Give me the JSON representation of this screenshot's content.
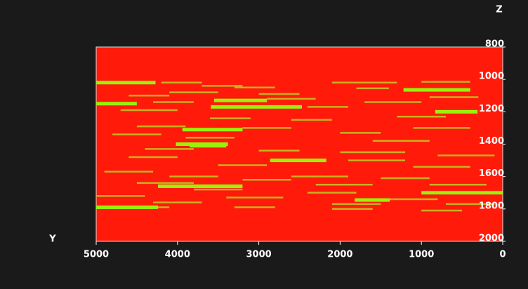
{
  "chart_data": {
    "type": "segments",
    "xlabel": "Y",
    "ylabel": "Z",
    "xlim": [
      5000,
      0
    ],
    "xticks": [
      5000,
      4000,
      3000,
      2000,
      1000,
      0
    ],
    "ylim": [
      800,
      2000
    ],
    "yticks": [
      800,
      1000,
      1200,
      1400,
      1600,
      1800,
      2000
    ],
    "background": "#ff1a0a",
    "series": [
      {
        "color": "#c8b020",
        "segments": [
          {
            "y": [
              4200,
              3700
            ],
            "z": 1020
          },
          {
            "y": [
              3700,
              3200
            ],
            "z": 1040
          },
          {
            "y": [
              3300,
              2800
            ],
            "z": 1050
          },
          {
            "y": [
              2100,
              1300
            ],
            "z": 1020
          },
          {
            "y": [
              1000,
              400
            ],
            "z": 1015
          },
          {
            "y": [
              1800,
              1400
            ],
            "z": 1055
          },
          {
            "y": [
              4100,
              3500
            ],
            "z": 1080
          },
          {
            "y": [
              3000,
              2500
            ],
            "z": 1090
          },
          {
            "y": [
              4600,
              4100
            ],
            "z": 1100
          },
          {
            "y": [
              2900,
              2300
            ],
            "z": 1120
          },
          {
            "y": [
              900,
              300
            ],
            "z": 1110
          },
          {
            "y": [
              4300,
              3800
            ],
            "z": 1140
          },
          {
            "y": [
              1700,
              1000
            ],
            "z": 1140
          },
          {
            "y": [
              2400,
              1900
            ],
            "z": 1170
          },
          {
            "y": [
              4700,
              4000
            ],
            "z": 1190
          },
          {
            "y": [
              1300,
              700
            ],
            "z": 1230
          },
          {
            "y": [
              3600,
              3100
            ],
            "z": 1240
          },
          {
            "y": [
              2600,
              2100
            ],
            "z": 1250
          },
          {
            "y": [
              4500,
              3900
            ],
            "z": 1290
          },
          {
            "y": [
              3200,
              2600
            ],
            "z": 1300
          },
          {
            "y": [
              1100,
              400
            ],
            "z": 1300
          },
          {
            "y": [
              4800,
              4200
            ],
            "z": 1340
          },
          {
            "y": [
              2000,
              1500
            ],
            "z": 1330
          },
          {
            "y": [
              3900,
              3300
            ],
            "z": 1360
          },
          {
            "y": [
              1600,
              900
            ],
            "z": 1380
          },
          {
            "y": [
              4400,
              3800
            ],
            "z": 1430
          },
          {
            "y": [
              3000,
              2500
            ],
            "z": 1440
          },
          {
            "y": [
              2000,
              1200
            ],
            "z": 1450
          },
          {
            "y": [
              800,
              100
            ],
            "z": 1470
          },
          {
            "y": [
              4600,
              4000
            ],
            "z": 1480
          },
          {
            "y": [
              1900,
              1200
            ],
            "z": 1500
          },
          {
            "y": [
              3500,
              2900
            ],
            "z": 1530
          },
          {
            "y": [
              1100,
              400
            ],
            "z": 1540
          },
          {
            "y": [
              4900,
              4300
            ],
            "z": 1570
          },
          {
            "y": [
              4100,
              3500
            ],
            "z": 1600
          },
          {
            "y": [
              2600,
              1900
            ],
            "z": 1600
          },
          {
            "y": [
              1500,
              900
            ],
            "z": 1610
          },
          {
            "y": [
              3200,
              2600
            ],
            "z": 1620
          },
          {
            "y": [
              4500,
              3800
            ],
            "z": 1640
          },
          {
            "y": [
              2300,
              1600
            ],
            "z": 1650
          },
          {
            "y": [
              900,
              200
            ],
            "z": 1650
          },
          {
            "y": [
              3800,
              3200
            ],
            "z": 1680
          },
          {
            "y": [
              2400,
              1800
            ],
            "z": 1700
          },
          {
            "y": [
              5000,
              4400
            ],
            "z": 1720
          },
          {
            "y": [
              3400,
              2700
            ],
            "z": 1730
          },
          {
            "y": [
              1400,
              800
            ],
            "z": 1740
          },
          {
            "y": [
              4300,
              3700
            ],
            "z": 1760
          },
          {
            "y": [
              2100,
              1500
            ],
            "z": 1770
          },
          {
            "y": [
              700,
              100
            ],
            "z": 1770
          },
          {
            "y": [
              4800,
              4100
            ],
            "z": 1790
          },
          {
            "y": [
              2100,
              1600
            ],
            "z": 1800
          },
          {
            "y": [
              3300,
              2800
            ],
            "z": 1790
          },
          {
            "y": [
              1000,
              500
            ],
            "z": 1810
          }
        ]
      },
      {
        "color": "#99f20a",
        "segments": [
          {
            "y": [
              5000,
              4270
            ],
            "z": 1020
          },
          {
            "y": [
              5000,
              4500
            ],
            "z": 1150
          },
          {
            "y": [
              3550,
              2900
            ],
            "z": 1130
          },
          {
            "y": [
              3590,
              2470
            ],
            "z": 1170
          },
          {
            "y": [
              3940,
              3200
            ],
            "z": 1310
          },
          {
            "y": [
              4020,
              3380
            ],
            "z": 1400
          },
          {
            "y": [
              3850,
              3400
            ],
            "z": 1410
          },
          {
            "y": [
              2860,
              2170
            ],
            "z": 1500
          },
          {
            "y": [
              4240,
              3200
            ],
            "z": 1660
          },
          {
            "y": [
              1000,
              0
            ],
            "z": 1700
          },
          {
            "y": [
              1820,
              1390
            ],
            "z": 1745
          },
          {
            "y": [
              5000,
              4240
            ],
            "z": 1790
          },
          {
            "y": [
              1220,
              400
            ],
            "z": 1065
          },
          {
            "y": [
              830,
              310
            ],
            "z": 1200
          }
        ]
      }
    ]
  }
}
